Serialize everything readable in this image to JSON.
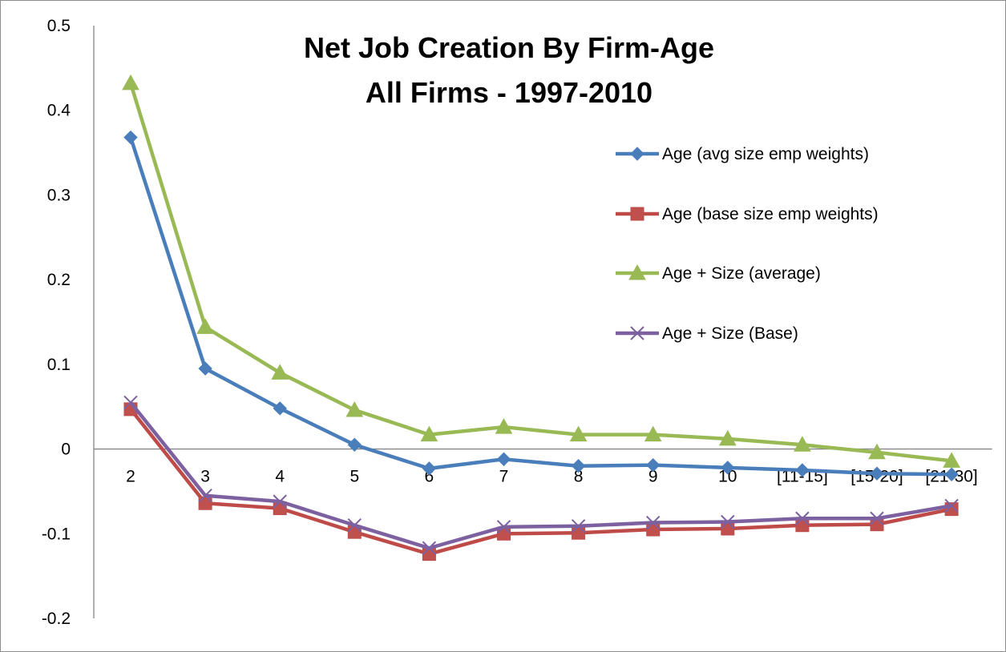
{
  "chart_data": {
    "type": "line",
    "title": "Net Job Creation By Firm-Age",
    "subtitle": "All Firms - 1997-2010",
    "xlabel": "",
    "ylabel": "",
    "ylim": [
      -0.2,
      0.5
    ],
    "yticks": [
      "0.5",
      "0.4",
      "0.3",
      "0.2",
      "0.1",
      "0",
      "-0.1",
      "-0.2"
    ],
    "ytick_values": [
      0.5,
      0.4,
      0.3,
      0.2,
      0.1,
      0,
      -0.1,
      -0.2
    ],
    "categories": [
      "2",
      "3",
      "4",
      "5",
      "6",
      "7",
      "8",
      "9",
      "10",
      "[11-15]",
      "[15-20]",
      "[21-30]"
    ],
    "grid": false,
    "legend_position": "right",
    "series": [
      {
        "name": "Age (avg size emp weights)",
        "color": "#4a7ebb",
        "marker": "diamond",
        "values": [
          0.368,
          0.095,
          0.048,
          0.005,
          -0.023,
          -0.012,
          -0.02,
          -0.019,
          -0.022,
          -0.025,
          -0.029,
          -0.03
        ]
      },
      {
        "name": "Age (base size emp weights)",
        "color": "#be4b48",
        "marker": "square",
        "values": [
          0.047,
          -0.064,
          -0.07,
          -0.098,
          -0.124,
          -0.1,
          -0.099,
          -0.095,
          -0.094,
          -0.09,
          -0.089,
          -0.071
        ]
      },
      {
        "name": "Age + Size (average)",
        "color": "#98b954",
        "marker": "triangle",
        "values": [
          0.432,
          0.144,
          0.09,
          0.046,
          0.017,
          0.026,
          0.017,
          0.017,
          0.012,
          0.005,
          -0.004,
          -0.014
        ]
      },
      {
        "name": "Age + Size (Base)",
        "color": "#7d60a0",
        "marker": "x",
        "values": [
          0.055,
          -0.055,
          -0.062,
          -0.09,
          -0.117,
          -0.092,
          -0.091,
          -0.087,
          -0.086,
          -0.082,
          -0.082,
          -0.067
        ]
      }
    ]
  }
}
